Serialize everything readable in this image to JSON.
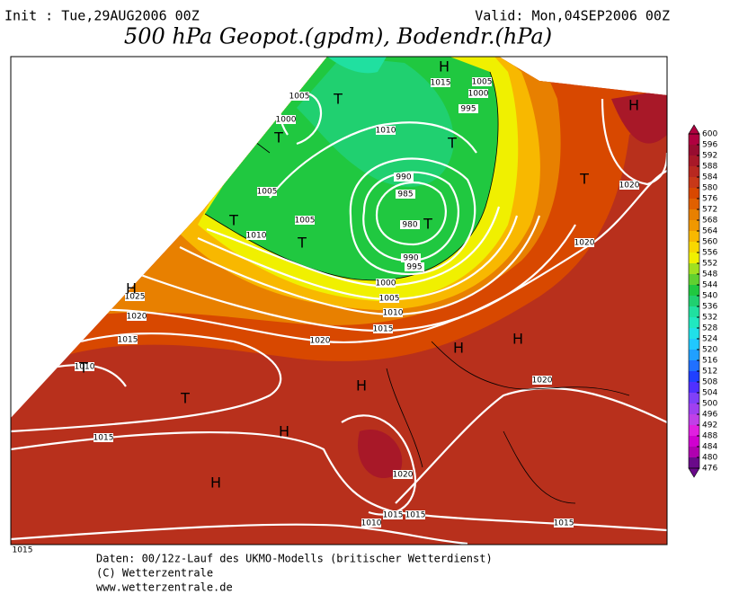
{
  "header": {
    "init": "Init : Tue,29AUG2006 00Z",
    "valid": "Valid: Mon,04SEP2006 00Z",
    "title": "500 hPa Geopot.(gpdm), Bodendr.(hPa)"
  },
  "isobar_labels": [
    1005,
    1000,
    1010,
    1015,
    1005,
    1000,
    995,
    1005,
    1005,
    1010,
    990,
    985,
    980,
    990,
    995,
    1000,
    1005,
    1010,
    1015,
    1020,
    1025,
    1020,
    1015,
    1010,
    1015,
    1020,
    1015,
    1015,
    1010,
    1015,
    1015,
    1020,
    1020,
    1020
  ],
  "pressure_centers": [
    "H",
    "T",
    "T",
    "H",
    "T",
    "T",
    "T",
    "T",
    "T",
    "H",
    "T",
    "T",
    "H",
    "H",
    "H",
    "H",
    "H"
  ],
  "colorbar": {
    "levels": [
      476,
      480,
      484,
      488,
      492,
      496,
      500,
      504,
      508,
      512,
      516,
      520,
      524,
      528,
      532,
      536,
      540,
      544,
      548,
      552,
      556,
      560,
      564,
      568,
      572,
      576,
      580,
      584,
      588,
      592,
      596,
      600
    ],
    "colors": [
      "#6a0a8a",
      "#b000b0",
      "#d000d0",
      "#e020e0",
      "#c040e8",
      "#a040f0",
      "#8040f8",
      "#5030ff",
      "#2040ff",
      "#2070ff",
      "#20a0ff",
      "#20c8ff",
      "#20e0e8",
      "#20e8c0",
      "#20e0a0",
      "#20d070",
      "#20c840",
      "#60d030",
      "#a0e020",
      "#f0f000",
      "#f8d800",
      "#f8b800",
      "#f09800",
      "#e88000",
      "#e06000",
      "#d84800",
      "#c83818",
      "#b82820",
      "#a81828",
      "#980c30",
      "#b00040"
    ]
  },
  "footer": [
    "Daten: 00/12z-Lauf des UKMO-Modells (britischer Wetterdienst)",
    "(C) Wetterzentrale",
    "www.wetterzentrale.de"
  ]
}
